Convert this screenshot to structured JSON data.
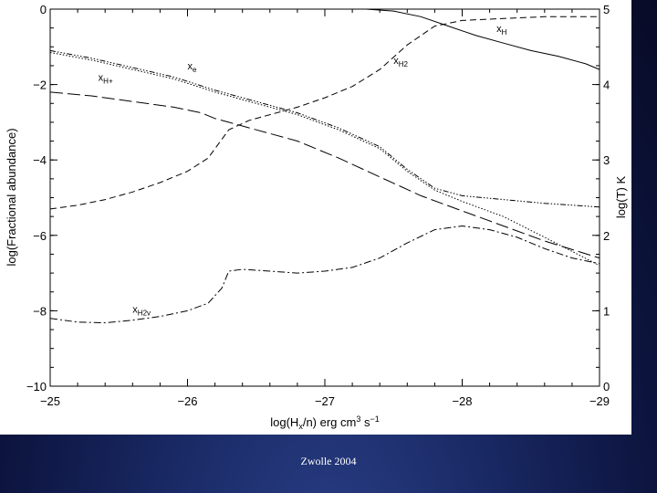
{
  "footer": "Zwolle 2004",
  "chart_data": {
    "type": "line",
    "title": "",
    "xlabel": "log(H_x/n) erg cm^3 s^-1",
    "xlabel_parts": {
      "pre": "log(H",
      "sub": "x",
      "mid": "/n) erg cm",
      "sup1": "3",
      "mid2": " s",
      "sup2": "−1"
    },
    "ylabel": "log(Fractional abundance)",
    "ylabel_right": "log(T) K",
    "xlim": [
      -25,
      -29
    ],
    "ylim": [
      -10,
      0
    ],
    "ylim_right": [
      0,
      5
    ],
    "xticks": [
      -25,
      -26,
      -27,
      -28,
      -29
    ],
    "xtick_labels": [
      "−25",
      "−26",
      "−27",
      "−28",
      "−29"
    ],
    "yticks": [
      0,
      -2,
      -4,
      -6,
      -8,
      -10
    ],
    "ytick_labels": [
      "0",
      "−2",
      "−4",
      "−6",
      "−8",
      "−10"
    ],
    "yticks_right": [
      5,
      4,
      3,
      2,
      1,
      0
    ],
    "ytick_right_labels": [
      "5",
      "4",
      "3",
      "2",
      "1",
      "0"
    ],
    "grid": false,
    "annotations": [
      {
        "base": "x",
        "sub": "H",
        "x": -28.25,
        "y": -0.6
      },
      {
        "base": "x",
        "sub": "e",
        "x": -26.0,
        "y": -1.6
      },
      {
        "base": "x",
        "sub": "H+",
        "x": -25.35,
        "y": -1.9
      },
      {
        "base": "x",
        "sub": "H2",
        "x": -27.5,
        "y": -1.45
      },
      {
        "base": "x",
        "sub": "H2v",
        "x": -25.6,
        "y": -8.05
      }
    ],
    "series": [
      {
        "name": "x_H",
        "dash": "none",
        "x": [
          -25,
          -26.5,
          -27.3,
          -27.5,
          -27.7,
          -27.9,
          -28.1,
          -28.3,
          -28.5,
          -28.7,
          -28.9,
          -29
        ],
        "y": [
          0,
          0,
          0,
          -0.05,
          -0.2,
          -0.45,
          -0.7,
          -0.9,
          -1.1,
          -1.25,
          -1.45,
          -1.6
        ]
      },
      {
        "name": "x_H2",
        "dash": "7,4",
        "x": [
          -25,
          -25.2,
          -25.4,
          -25.6,
          -25.8,
          -26.0,
          -26.15,
          -26.3,
          -26.45,
          -26.6,
          -26.8,
          -27.0,
          -27.2,
          -27.4,
          -27.6,
          -27.8,
          -28.0,
          -28.3,
          -28.6,
          -29
        ],
        "y": [
          -5.3,
          -5.2,
          -5.05,
          -4.85,
          -4.6,
          -4.3,
          -3.95,
          -3.2,
          -2.95,
          -2.8,
          -2.6,
          -2.35,
          -2.05,
          -1.6,
          -0.95,
          -0.45,
          -0.3,
          -0.25,
          -0.2,
          -0.2
        ]
      },
      {
        "name": "x_e",
        "dash": "1.5,2",
        "x": [
          -25,
          -25.3,
          -25.6,
          -25.9,
          -26.2,
          -26.5,
          -26.8,
          -27.1,
          -27.4,
          -27.6,
          -27.8,
          -28.0,
          -28.3,
          -28.6,
          -29
        ],
        "y": [
          -1.15,
          -1.35,
          -1.6,
          -1.85,
          -2.2,
          -2.5,
          -2.8,
          -3.2,
          -3.7,
          -4.3,
          -4.8,
          -5.1,
          -5.5,
          -6.05,
          -6.8
        ]
      },
      {
        "name": "x_H+",
        "dash": "6,2,1.5,2,1.5,2,1.5,2",
        "x": [
          -25,
          -25.3,
          -25.6,
          -25.9,
          -26.2,
          -26.5,
          -26.8,
          -27.1,
          -27.4,
          -27.6,
          -27.8,
          -28.0,
          -28.3,
          -28.6,
          -29
        ],
        "y": [
          -1.1,
          -1.3,
          -1.55,
          -1.8,
          -2.15,
          -2.45,
          -2.75,
          -3.15,
          -3.65,
          -4.25,
          -4.75,
          -4.95,
          -5.05,
          -5.15,
          -5.25
        ]
      },
      {
        "name": "x_H-",
        "dash": "14,5",
        "x": [
          -25,
          -25.3,
          -25.6,
          -25.9,
          -26.1,
          -26.2,
          -26.3,
          -26.5,
          -26.8,
          -27.1,
          -27.4,
          -27.7,
          -28.0,
          -28.3,
          -28.6,
          -29
        ],
        "y": [
          -2.2,
          -2.3,
          -2.45,
          -2.6,
          -2.75,
          -2.9,
          -3.0,
          -3.2,
          -3.5,
          -3.95,
          -4.45,
          -4.95,
          -5.35,
          -5.75,
          -6.15,
          -6.6
        ]
      },
      {
        "name": "x_H2v",
        "dash": "8,3,2,3",
        "x": [
          -25,
          -25.2,
          -25.4,
          -25.6,
          -25.8,
          -26.0,
          -26.15,
          -26.25,
          -26.3,
          -26.4,
          -26.6,
          -26.8,
          -27.0,
          -27.2,
          -27.4,
          -27.6,
          -27.8,
          -28.0,
          -28.2,
          -28.4,
          -28.6,
          -28.8,
          -29
        ],
        "y": [
          -8.2,
          -8.3,
          -8.32,
          -8.25,
          -8.15,
          -8.0,
          -7.8,
          -7.4,
          -6.95,
          -6.9,
          -6.95,
          -7.0,
          -6.95,
          -6.85,
          -6.6,
          -6.2,
          -5.85,
          -5.75,
          -5.85,
          -6.05,
          -6.35,
          -6.6,
          -6.75
        ]
      }
    ]
  }
}
